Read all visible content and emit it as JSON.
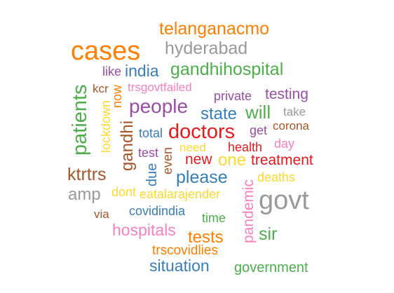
{
  "words": [
    {
      "text": "cases",
      "color": "#ff7f00"
    },
    {
      "text": "telanganacmo",
      "color": "#ff7f00"
    },
    {
      "text": "hyderabad",
      "color": "#999999"
    },
    {
      "text": "like",
      "color": "#984ea3"
    },
    {
      "text": "india",
      "color": "#377eb8"
    },
    {
      "text": "gandhihospital",
      "color": "#4daf4a"
    },
    {
      "text": "kcr",
      "color": "#a65628"
    },
    {
      "text": "trsgovtfailed",
      "color": "#f781bf"
    },
    {
      "text": "private",
      "color": "#984ea3"
    },
    {
      "text": "testing",
      "color": "#984ea3"
    },
    {
      "text": "people",
      "color": "#984ea3"
    },
    {
      "text": "state",
      "color": "#377eb8"
    },
    {
      "text": "will",
      "color": "#4daf4a"
    },
    {
      "text": "take",
      "color": "#999999"
    },
    {
      "text": "corona",
      "color": "#a65628"
    },
    {
      "text": "total",
      "color": "#377eb8"
    },
    {
      "text": "doctors",
      "color": "#e41a1c"
    },
    {
      "text": "get",
      "color": "#984ea3"
    },
    {
      "text": "day",
      "color": "#f781bf"
    },
    {
      "text": "need",
      "color": "#ffd92f"
    },
    {
      "text": "health",
      "color": "#e41a1c"
    },
    {
      "text": "test",
      "color": "#984ea3"
    },
    {
      "text": "new",
      "color": "#e41a1c"
    },
    {
      "text": "one",
      "color": "#ffd92f"
    },
    {
      "text": "treatment",
      "color": "#e41a1c"
    },
    {
      "text": "ktrtrs",
      "color": "#a65628"
    },
    {
      "text": "please",
      "color": "#377eb8"
    },
    {
      "text": "deaths",
      "color": "#ffd92f"
    },
    {
      "text": "amp",
      "color": "#999999"
    },
    {
      "text": "dont",
      "color": "#ffd92f"
    },
    {
      "text": "eatalarajender",
      "color": "#ffd92f"
    },
    {
      "text": "govt",
      "color": "#999999"
    },
    {
      "text": "via",
      "color": "#a65628"
    },
    {
      "text": "covidindia",
      "color": "#377eb8"
    },
    {
      "text": "time",
      "color": "#4daf4a"
    },
    {
      "text": "hospitals",
      "color": "#f781bf"
    },
    {
      "text": "tests",
      "color": "#ff7f00"
    },
    {
      "text": "sir",
      "color": "#4daf4a"
    },
    {
      "text": "trscovidlies",
      "color": "#ff7f00"
    },
    {
      "text": "situation",
      "color": "#377eb8"
    },
    {
      "text": "government",
      "color": "#4daf4a"
    },
    {
      "text": "patients",
      "color": "#4daf4a"
    },
    {
      "text": "lockdown",
      "color": "#ffd92f"
    },
    {
      "text": "now",
      "color": "#ff7f00"
    },
    {
      "text": "gandhi",
      "color": "#a65628"
    },
    {
      "text": "due",
      "color": "#377eb8"
    },
    {
      "text": "even",
      "color": "#a65628"
    },
    {
      "text": "pandemic",
      "color": "#f781bf"
    }
  ]
}
